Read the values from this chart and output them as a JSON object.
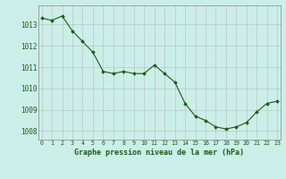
{
  "hours": [
    0,
    1,
    2,
    3,
    4,
    5,
    6,
    7,
    8,
    9,
    10,
    11,
    12,
    13,
    14,
    15,
    16,
    17,
    18,
    19,
    20,
    21,
    22,
    23
  ],
  "pressure": [
    1013.3,
    1013.2,
    1013.4,
    1012.7,
    1012.2,
    1011.7,
    1010.8,
    1010.7,
    1010.8,
    1010.7,
    1010.7,
    1011.1,
    1010.7,
    1010.3,
    1009.3,
    1008.7,
    1008.5,
    1008.2,
    1008.1,
    1008.2,
    1008.4,
    1008.9,
    1009.3,
    1009.4
  ],
  "line_color": "#1a5c1a",
  "marker_color": "#1a5c1a",
  "bg_color": "#cceee8",
  "grid_color": "#aaaaaa",
  "xlabel": "Graphe pression niveau de la mer (hPa)",
  "label_color": "#1a5c1a",
  "ylim": [
    1007.6,
    1013.9
  ],
  "yticks": [
    1008,
    1009,
    1010,
    1011,
    1012,
    1013
  ],
  "xtick_labels": [
    "0",
    "1",
    "2",
    "3",
    "4",
    "5",
    "6",
    "7",
    "8",
    "9",
    "10",
    "11",
    "12",
    "13",
    "14",
    "15",
    "16",
    "17",
    "18",
    "19",
    "20",
    "21",
    "22",
    "23"
  ],
  "figsize": [
    3.2,
    2.0
  ],
  "dpi": 100
}
